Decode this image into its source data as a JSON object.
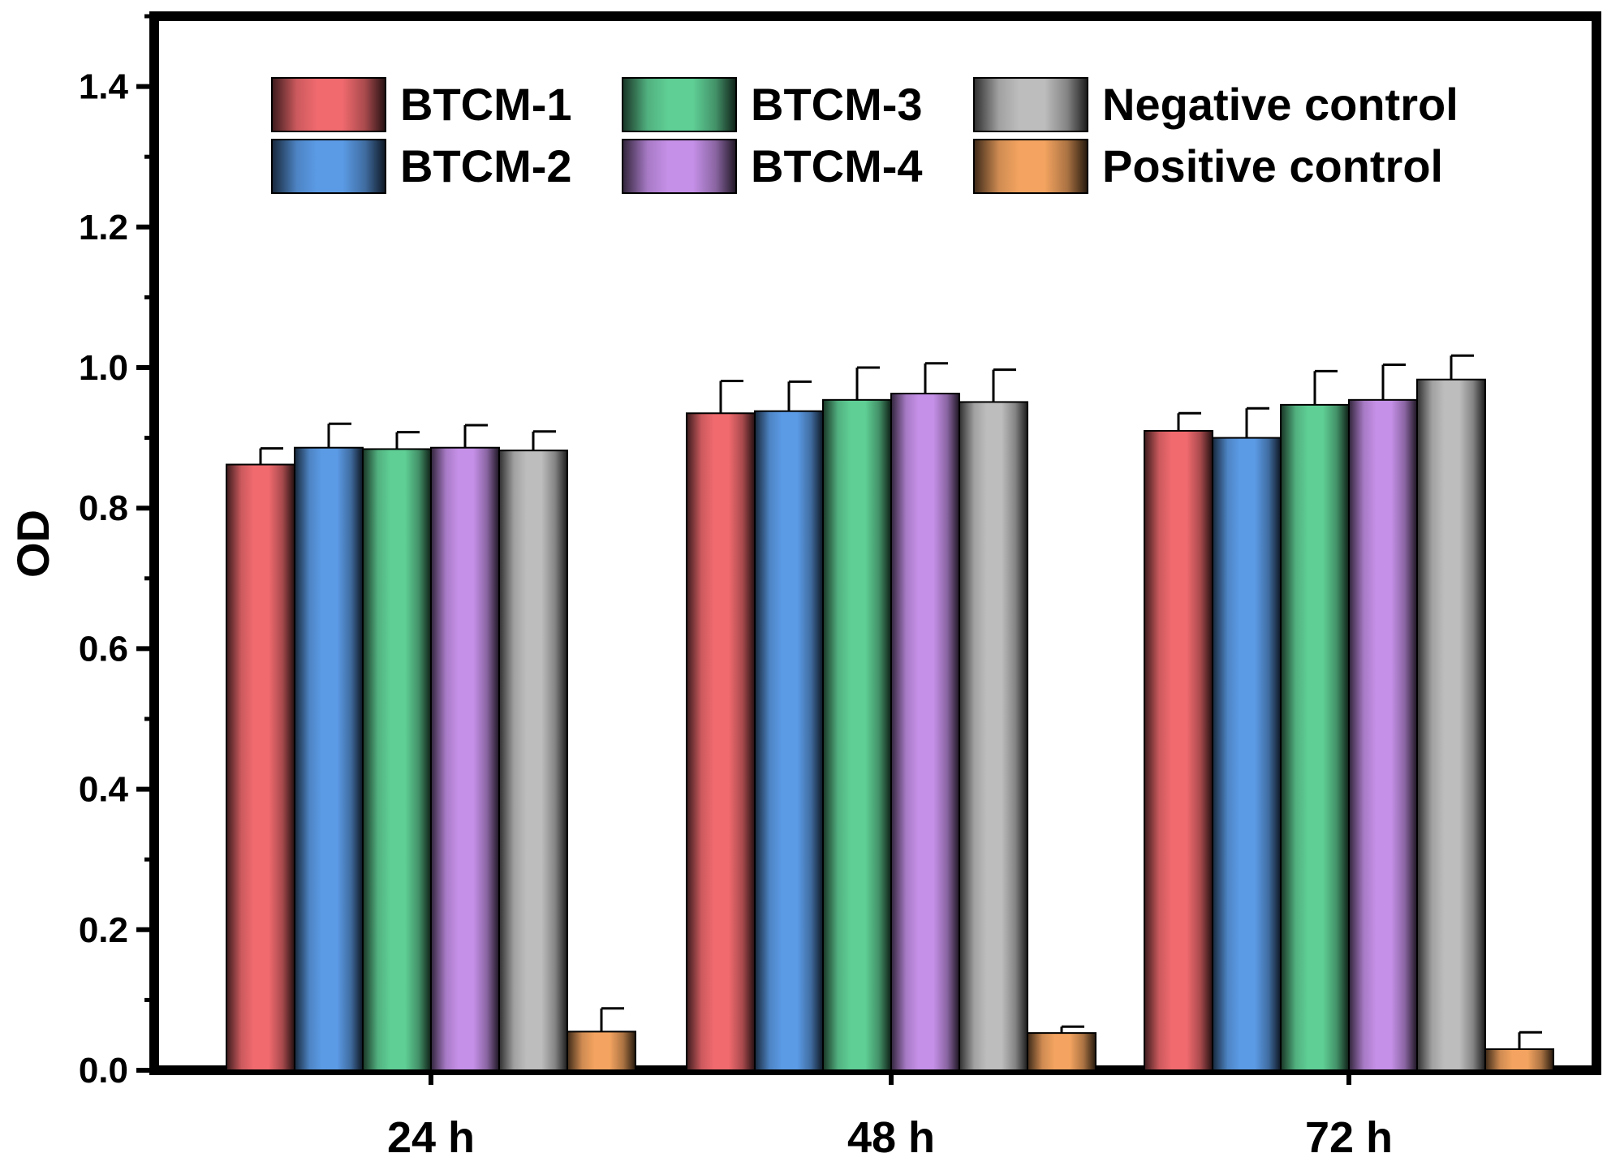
{
  "chart_data": {
    "type": "bar",
    "title": "",
    "xlabel": "",
    "ylabel": "OD",
    "ylim": [
      0,
      1.5
    ],
    "yticks": [
      "0.0",
      "0.2",
      "0.4",
      "0.6",
      "0.8",
      "1.0",
      "1.2",
      "1.4"
    ],
    "categories": [
      "24 h",
      "48 h",
      "72 h"
    ],
    "legend_position": "top",
    "grid": false,
    "series": [
      {
        "name": "BTCM-1",
        "color": "#f06a6e",
        "values": [
          0.862,
          0.935,
          0.91
        ],
        "errors": [
          0.023,
          0.046,
          0.025
        ]
      },
      {
        "name": "BTCM-2",
        "color": "#5b9be6",
        "values": [
          0.886,
          0.938,
          0.9
        ],
        "errors": [
          0.034,
          0.042,
          0.042
        ]
      },
      {
        "name": "BTCM-3",
        "color": "#5fcf95",
        "values": [
          0.884,
          0.954,
          0.947
        ],
        "errors": [
          0.024,
          0.046,
          0.048
        ]
      },
      {
        "name": "BTCM-4",
        "color": "#c590e8",
        "values": [
          0.886,
          0.963,
          0.954
        ],
        "errors": [
          0.032,
          0.043,
          0.05
        ]
      },
      {
        "name": "Negative control",
        "color": "#bdbdbd",
        "values": [
          0.882,
          0.951,
          0.983
        ],
        "errors": [
          0.027,
          0.046,
          0.034
        ]
      },
      {
        "name": "Positive control",
        "color": "#f4a460",
        "values": [
          0.055,
          0.053,
          0.03
        ],
        "errors": [
          0.033,
          0.009,
          0.024
        ]
      }
    ]
  }
}
